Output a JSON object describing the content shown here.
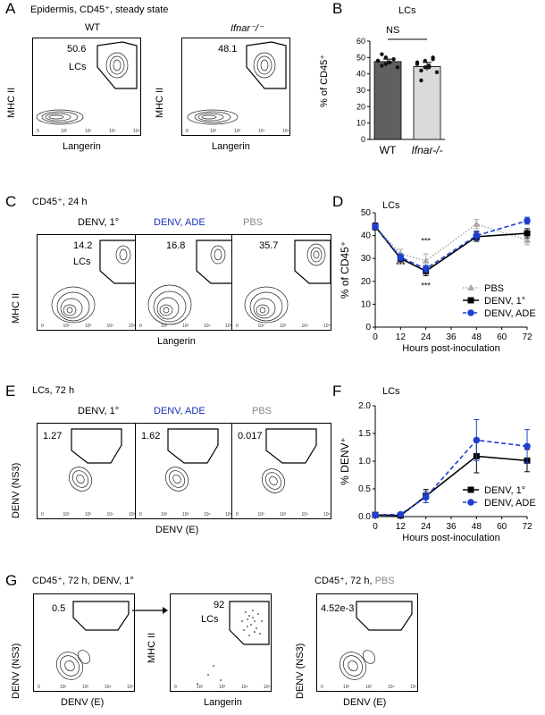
{
  "panels": {
    "A": {
      "letter": "A",
      "title": "Epidermis, CD45⁺, steady state",
      "plots": [
        {
          "label": "WT",
          "label_style": "normal",
          "value": "50.6",
          "gate_label": "LCs"
        },
        {
          "label": "Ifnar⁻/⁻",
          "label_style": "italic",
          "value": "48.1",
          "gate_label": ""
        }
      ],
      "y_axis": "MHC II",
      "x_axis": "Langerin"
    },
    "B": {
      "letter": "B",
      "title": "LCs",
      "ylabel": "% of CD45⁺",
      "significance": "NS"
    },
    "C": {
      "letter": "C",
      "title": "CD45⁺, 24 h",
      "plots": [
        {
          "label": "DENV, 1°",
          "color": "black",
          "value": "14.2",
          "gate_label": "LCs"
        },
        {
          "label": "DENV, ADE",
          "color": "blue",
          "value": "16.8",
          "gate_label": ""
        },
        {
          "label": "PBS",
          "color": "gray",
          "value": "35.7",
          "gate_label": ""
        }
      ],
      "y_axis": "MHC II",
      "x_axis": "Langerin"
    },
    "D": {
      "letter": "D",
      "title": "LCs",
      "significance": [
        "***",
        "***",
        "***"
      ]
    },
    "E": {
      "letter": "E",
      "title": "LCs, 72 h",
      "plots": [
        {
          "label": "DENV, 1°",
          "color": "black",
          "value": "1.27"
        },
        {
          "label": "DENV, ADE",
          "color": "blue",
          "value": "1.62"
        },
        {
          "label": "PBS",
          "color": "gray",
          "value": "0.017"
        }
      ],
      "y_axis": "DENV (NS3)",
      "x_axis": "DENV (E)"
    },
    "F": {
      "letter": "F",
      "title": "LCs"
    },
    "G": {
      "letter": "G",
      "title_left": "CD45⁺, 72 h, DENV, 1°",
      "title_right_prefix": "CD45⁺, 72 h, ",
      "title_right_suffix": "PBS",
      "plot1": {
        "value": "0.5",
        "y_axis": "DENV (NS3)",
        "x_axis": "DENV (E)"
      },
      "plot2": {
        "value": "92",
        "gate_label": "LCs",
        "y_axis": "MHC II",
        "x_axis": "Langerin"
      },
      "plot3": {
        "value": "4.52e-3",
        "y_axis": "DENV (NS3)",
        "x_axis": "DENV (E)"
      }
    }
  },
  "facs_ticks": [
    "0",
    "10²",
    "10³",
    "10⁴",
    "10⁵"
  ],
  "chart_data": [
    {
      "type": "bar",
      "categories": [
        "WT",
        "Ifnar-/-"
      ],
      "category_styles": [
        "normal",
        "italic"
      ],
      "values": [
        47.5,
        44.5
      ],
      "errors": [
        1.5,
        2.5
      ],
      "points": [
        [
          48,
          45,
          50,
          47,
          49,
          44,
          48,
          52,
          46,
          47
        ],
        [
          46,
          42,
          48,
          44,
          50,
          41,
          47,
          36,
          44,
          45,
          49
        ]
      ],
      "colors": [
        "#606060",
        "#d9d9d9"
      ],
      "ylabel": "% of CD45⁺",
      "ylim": [
        0,
        60
      ],
      "yticks": [
        "0",
        "10",
        "20",
        "30",
        "40",
        "50",
        "60"
      ],
      "annotation": "NS"
    },
    {
      "type": "line",
      "x": [
        0,
        12,
        24,
        48,
        72
      ],
      "xticks": [
        "0",
        "12",
        "24",
        "36",
        "48",
        "60",
        "72"
      ],
      "xlabel": "Hours post-inoculation",
      "ylabel": "% of  CD45⁺",
      "ylim": [
        0,
        50
      ],
      "yticks": [
        "0",
        "10",
        "20",
        "30",
        "40",
        "50"
      ],
      "series": [
        {
          "name": "PBS",
          "values": [
            44,
            32,
            29,
            45,
            38
          ],
          "errors": [
            1,
            2,
            3,
            2,
            2
          ],
          "color": "#aaaaaa",
          "marker": "triangle",
          "dash": "dotted"
        },
        {
          "name": "DENV, 1°",
          "values": [
            44,
            30,
            24.5,
            39.5,
            41
          ],
          "errors": [
            1.5,
            1.5,
            2,
            2,
            2
          ],
          "color": "#000000",
          "marker": "square",
          "dash": "solid"
        },
        {
          "name": "DENV, ADE",
          "values": [
            44,
            30.5,
            25.5,
            40,
            46.5
          ],
          "errors": [
            1,
            1.5,
            1.5,
            2,
            1.5
          ],
          "color": "#1f3fd1",
          "marker": "circle",
          "dash": "dashed"
        }
      ],
      "legend_position": "bottom-right",
      "annotations": [
        "***",
        "***",
        "***"
      ]
    },
    {
      "type": "line",
      "x": [
        0,
        12,
        24,
        48,
        72
      ],
      "xticks": [
        "0",
        "12",
        "24",
        "36",
        "48",
        "60",
        "72"
      ],
      "xlabel": "Hours post-inoculation",
      "ylabel": "% DENV⁺",
      "ylim": [
        0,
        2.0
      ],
      "yticks": [
        "0.0",
        "0.5",
        "1.0",
        "1.5",
        "2.0"
      ],
      "series": [
        {
          "name": "DENV, 1°",
          "values": [
            0.03,
            0.02,
            0.37,
            1.09,
            1.01
          ],
          "errors": [
            0.02,
            0.02,
            0.12,
            0.3,
            0.2
          ],
          "color": "#000000",
          "marker": "square",
          "dash": "solid"
        },
        {
          "name": "DENV, ADE",
          "values": [
            0.03,
            0.04,
            0.35,
            1.38,
            1.27
          ],
          "errors": [
            0.02,
            0.03,
            0.1,
            0.37,
            0.3
          ],
          "color": "#1f3fd1",
          "marker": "circle",
          "dash": "dashed"
        }
      ],
      "legend_position": "bottom-right"
    }
  ]
}
